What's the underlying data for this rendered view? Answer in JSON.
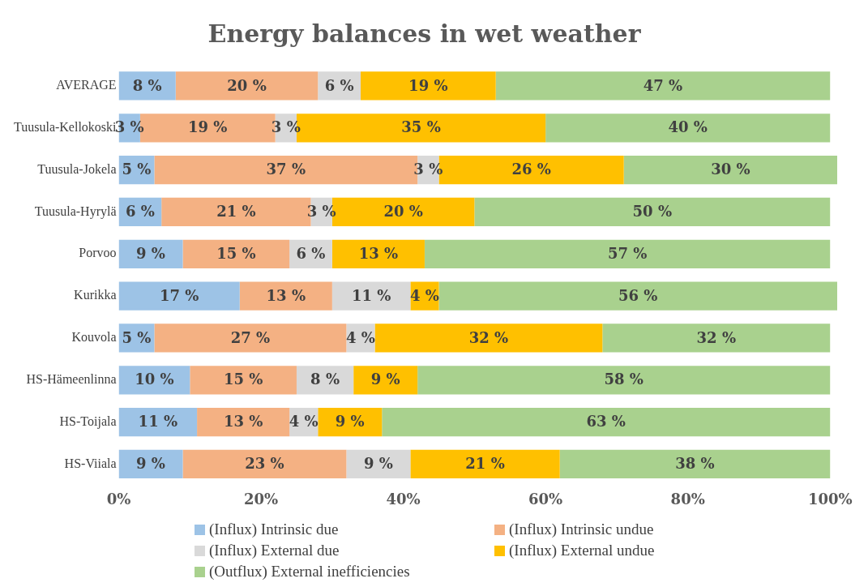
{
  "chart_data": {
    "type": "bar",
    "orientation": "horizontal",
    "stacked": true,
    "title": "Energy balances in wet weather",
    "categories": [
      "AVERAGE",
      "Tuusula-Kellokoski",
      "Tuusula-Jokela",
      "Tuusula-Hyrylä",
      "Porvoo",
      "Kurikka",
      "Kouvola",
      "HS-Hämeenlinna",
      "HS-Toijala",
      "HS-Viiala"
    ],
    "series": [
      {
        "name": "(Influx) Intrinsic due",
        "color": "#9dc3e6",
        "values": [
          8,
          3,
          5,
          6,
          9,
          17,
          5,
          10,
          11,
          9
        ],
        "value_labels": [
          "8 %",
          "3 %",
          "5 %",
          "6 %",
          "9 %",
          "17 %",
          "5 %",
          "10 %",
          "11 %",
          "9 %"
        ]
      },
      {
        "name": "(Influx) Intrinsic undue",
        "color": "#f4b183",
        "values": [
          20,
          19,
          37,
          21,
          15,
          13,
          27,
          15,
          13,
          23
        ],
        "value_labels": [
          "20 %",
          "19 %",
          "37 %",
          "21 %",
          "15 %",
          "13 %",
          "27 %",
          "15 %",
          "13 %",
          "23 %"
        ]
      },
      {
        "name": "(Influx) External due",
        "color": "#d9d9d9",
        "values": [
          6,
          3,
          3,
          3,
          6,
          11,
          4,
          8,
          4,
          9
        ],
        "value_labels": [
          "6 %",
          "3 %",
          "3 %",
          "3 %",
          "6 %",
          "11 %",
          "4 %",
          "8 %",
          "4 %",
          "9 %"
        ]
      },
      {
        "name": "(Influx) External undue",
        "color": "#ffc000",
        "values": [
          19,
          35,
          26,
          20,
          13,
          4,
          32,
          9,
          9,
          21
        ],
        "value_labels": [
          "19 %",
          "35 %",
          "26 %",
          "20 %",
          "13 %",
          "4 %",
          "32 %",
          "9 %",
          "9 %",
          "21 %"
        ]
      },
      {
        "name": "(Outflux) External inefficiencies",
        "color": "#a9d18e",
        "values": [
          47,
          40,
          30,
          50,
          57,
          56,
          32,
          58,
          63,
          38
        ],
        "value_labels": [
          "47 %",
          "40 %",
          "30 %",
          "50 %",
          "57 %",
          "56 %",
          "32 %",
          "58 %",
          "63 %",
          "38 %"
        ]
      }
    ],
    "xlim": [
      0,
      101
    ],
    "xticks": [
      {
        "value": 0,
        "label": "0%"
      },
      {
        "value": 20,
        "label": "20%"
      },
      {
        "value": 40,
        "label": "40%"
      },
      {
        "value": 60,
        "label": "60%"
      },
      {
        "value": 80,
        "label": "80%"
      },
      {
        "value": 100,
        "label": "100%"
      }
    ],
    "grid": false,
    "legend": "bottom"
  }
}
